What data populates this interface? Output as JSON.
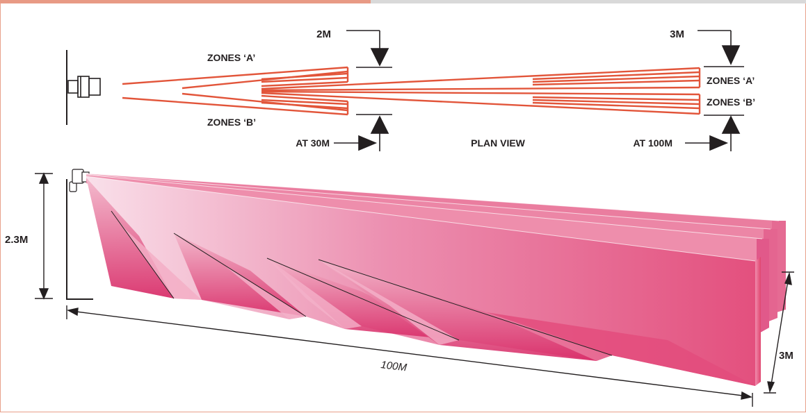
{
  "plan": {
    "title": "PLAN VIEW",
    "zone_a_left": "ZONES ‘A’",
    "zone_b_left": "ZONES ‘B’",
    "zone_a_right": "ZONES ‘A’",
    "zone_b_right": "ZONES ‘B’",
    "width_near": "2M",
    "width_far": "3M",
    "dist_near": "AT 30M",
    "dist_far": "AT 100M"
  },
  "side": {
    "height": "2.3M",
    "length": "100M",
    "width": "3M"
  },
  "colors": {
    "beam_lines": "#e2553a",
    "beam_fill_dark": "#d81f62",
    "beam_fill_light": "#f7d6e2",
    "ink": "#231f20",
    "frame": "#e8a08a"
  },
  "icons": {
    "sensor": "beam-sensor-icon"
  }
}
